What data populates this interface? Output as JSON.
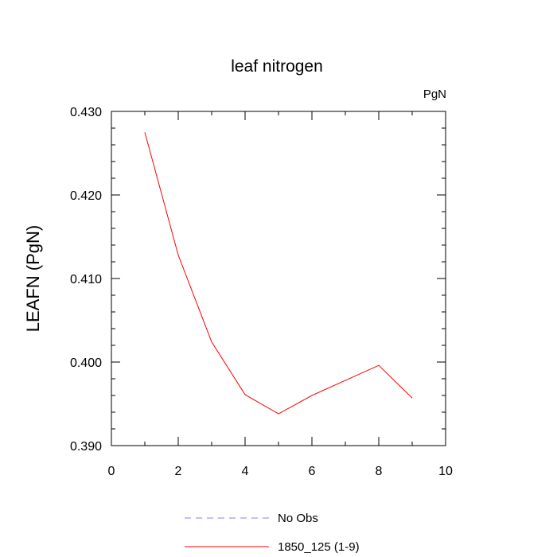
{
  "chart_data": {
    "type": "line",
    "title": "leaf nitrogen",
    "units": "PgN",
    "ylabel": "LEAFN  (PgN)",
    "xlabel": "",
    "xlim": [
      0,
      10
    ],
    "ylim": [
      0.39,
      0.43
    ],
    "x_ticks": [
      "0",
      "2",
      "4",
      "6",
      "8",
      "10"
    ],
    "y_ticks": [
      "0.390",
      "0.400",
      "0.410",
      "0.420",
      "0.430"
    ],
    "grid": false,
    "legend_position": "bottom",
    "series": [
      {
        "name": "No Obs",
        "style": "dashed",
        "color": "#8080ff",
        "x": [],
        "values": []
      },
      {
        "name": "1850_125 (1-9)",
        "style": "solid",
        "color": "#ff0000",
        "x": [
          1,
          2,
          3,
          4,
          5,
          6,
          7,
          8,
          9
        ],
        "values": [
          0.4275,
          0.4128,
          0.4024,
          0.3961,
          0.3938,
          0.396,
          0.3978,
          0.3996,
          0.3957
        ]
      }
    ]
  }
}
